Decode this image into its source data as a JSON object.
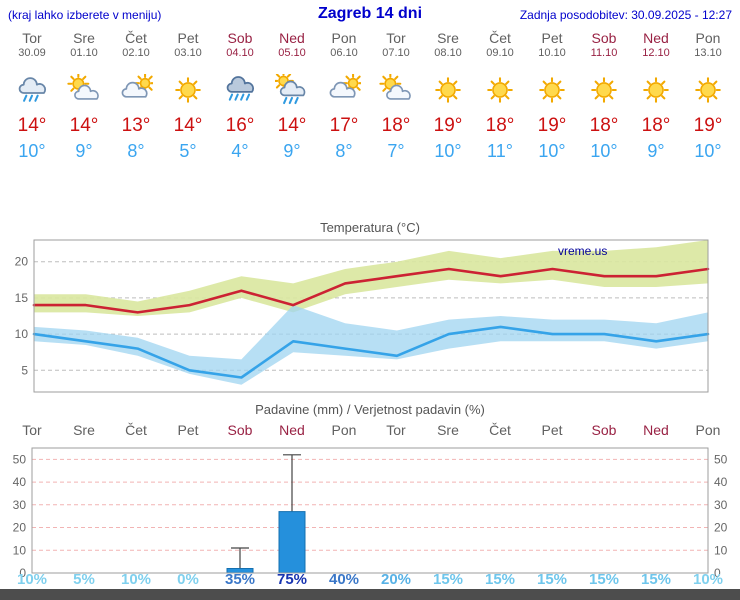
{
  "header": {
    "left_note": "(kraj lahko izberete v meniju)",
    "title": "Zagreb 14 dni",
    "updated": "Zadnja posodobitev: 30.09.2025 - 12:27"
  },
  "colors": {
    "header_blue": "#0000cc",
    "weekday_gray": "#606060",
    "weekend_red": "#992244",
    "tmax_red": "#cc1111",
    "tmin_blue": "#3aa5f0",
    "footer_gray": "#4d4d4d"
  },
  "days": [
    {
      "name": "Tor",
      "date": "30.09",
      "weekend": false,
      "icon": "cloud-rain",
      "tmax": "14°",
      "tmin": "10°"
    },
    {
      "name": "Sre",
      "date": "01.10",
      "weekend": false,
      "icon": "partly-cloudy",
      "tmax": "14°",
      "tmin": "9°"
    },
    {
      "name": "Čet",
      "date": "02.10",
      "weekend": false,
      "icon": "mostly-cloudy",
      "tmax": "13°",
      "tmin": "8°"
    },
    {
      "name": "Pet",
      "date": "03.10",
      "weekend": false,
      "icon": "sunny",
      "tmax": "14°",
      "tmin": "5°"
    },
    {
      "name": "Sob",
      "date": "04.10",
      "weekend": true,
      "icon": "rain",
      "tmax": "16°",
      "tmin": "4°"
    },
    {
      "name": "Ned",
      "date": "05.10",
      "weekend": true,
      "icon": "sun-rain",
      "tmax": "14°",
      "tmin": "9°"
    },
    {
      "name": "Pon",
      "date": "06.10",
      "weekend": false,
      "icon": "mostly-cloudy",
      "tmax": "17°",
      "tmin": "8°"
    },
    {
      "name": "Tor",
      "date": "07.10",
      "weekend": false,
      "icon": "partly-cloudy",
      "tmax": "18°",
      "tmin": "7°"
    },
    {
      "name": "Sre",
      "date": "08.10",
      "weekend": false,
      "icon": "sunny",
      "tmax": "19°",
      "tmin": "10°"
    },
    {
      "name": "Čet",
      "date": "09.10",
      "weekend": false,
      "icon": "sunny",
      "tmax": "18°",
      "tmin": "11°"
    },
    {
      "name": "Pet",
      "date": "10.10",
      "weekend": false,
      "icon": "sunny",
      "tmax": "19°",
      "tmin": "10°"
    },
    {
      "name": "Sob",
      "date": "11.10",
      "weekend": true,
      "icon": "sunny",
      "tmax": "18°",
      "tmin": "10°"
    },
    {
      "name": "Ned",
      "date": "12.10",
      "weekend": true,
      "icon": "sunny",
      "tmax": "18°",
      "tmin": "9°"
    },
    {
      "name": "Pon",
      "date": "13.10",
      "weekend": false,
      "icon": "sunny",
      "tmax": "19°",
      "tmin": "10°"
    }
  ],
  "chart_data": [
    {
      "type": "line",
      "title": "Temperatura (°C)",
      "x_labels": [
        "Tor",
        "Sre",
        "Čet",
        "Pet",
        "Sob",
        "Ned",
        "Pon",
        "Tor",
        "Sre",
        "Čet",
        "Pet",
        "Sob",
        "Ned",
        "Pon"
      ],
      "ylim": [
        2,
        23
      ],
      "yticks": [
        5,
        10,
        15,
        20
      ],
      "grid": true,
      "watermark": "vreme.us",
      "series": [
        {
          "name": "max-temperature",
          "color": "#cc2233",
          "values": [
            14,
            14,
            13,
            14,
            16,
            14,
            17,
            18,
            19,
            18,
            19,
            18,
            18,
            19
          ]
        },
        {
          "name": "min-temperature",
          "color": "#35a3e8",
          "values": [
            10,
            9,
            8,
            5,
            4,
            9,
            8,
            7,
            10,
            11,
            10,
            10,
            9,
            10
          ]
        }
      ],
      "bands": [
        {
          "name": "max-temperature-range",
          "color": "#d9e79e",
          "opacity": 0.9,
          "upper": [
            15.5,
            15.5,
            14.5,
            16,
            18,
            17,
            19,
            20,
            21.5,
            20.5,
            21.5,
            21.5,
            22,
            23
          ],
          "lower": [
            13,
            13,
            12.5,
            13,
            15,
            13,
            15.5,
            16.5,
            17.5,
            17,
            17.5,
            16.5,
            16.5,
            17
          ]
        },
        {
          "name": "min-temperature-range",
          "color": "#9fd4f0",
          "opacity": 0.75,
          "upper": [
            11,
            10.5,
            9.5,
            7,
            6.5,
            14,
            11.5,
            10.5,
            12,
            12.5,
            12,
            12,
            11.5,
            13
          ],
          "lower": [
            9,
            8.5,
            7,
            4.5,
            3,
            7.5,
            7,
            6.5,
            8,
            9,
            9,
            9,
            8,
            9
          ]
        }
      ]
    },
    {
      "type": "bar",
      "title": "Padavine (mm) / Verjetnost padavin (%)",
      "categories": [
        "Tor",
        "Sre",
        "Čet",
        "Pet",
        "Sob",
        "Ned",
        "Pon",
        "Tor",
        "Sre",
        "Čet",
        "Pet",
        "Sob",
        "Ned",
        "Pon"
      ],
      "values": [
        0,
        0,
        0,
        0,
        2,
        27,
        0,
        0,
        0,
        0,
        0,
        0,
        0,
        0
      ],
      "max_mm": [
        0,
        0,
        0,
        0,
        11,
        52,
        0,
        0,
        0,
        0,
        0,
        0,
        0,
        0
      ],
      "probability_percent": [
        10,
        5,
        10,
        0,
        35,
        75,
        40,
        20,
        15,
        15,
        15,
        15,
        15,
        10
      ],
      "probability_labels": [
        {
          "label": "10%",
          "color": "#7fd0ee"
        },
        {
          "label": "5%",
          "color": "#7fd0ee"
        },
        {
          "label": "10%",
          "color": "#7fd0ee"
        },
        {
          "label": "0%",
          "color": "#7fd0ee"
        },
        {
          "label": "35%",
          "color": "#3a77c8"
        },
        {
          "label": "75%",
          "color": "#1733b0"
        },
        {
          "label": "40%",
          "color": "#3a77c8"
        },
        {
          "label": "20%",
          "color": "#58b2e6"
        },
        {
          "label": "15%",
          "color": "#6ec6ec"
        },
        {
          "label": "15%",
          "color": "#6ec6ec"
        },
        {
          "label": "15%",
          "color": "#6ec6ec"
        },
        {
          "label": "15%",
          "color": "#6ec6ec"
        },
        {
          "label": "15%",
          "color": "#6ec6ec"
        },
        {
          "label": "10%",
          "color": "#7fd0ee"
        }
      ],
      "ylim": [
        0,
        55
      ],
      "yticks": [
        0,
        10,
        20,
        30,
        40,
        50
      ],
      "grid": true,
      "grid_color": "#f2b4b4",
      "bar_color": "#2590dc",
      "whisker_color": "#444444"
    }
  ]
}
